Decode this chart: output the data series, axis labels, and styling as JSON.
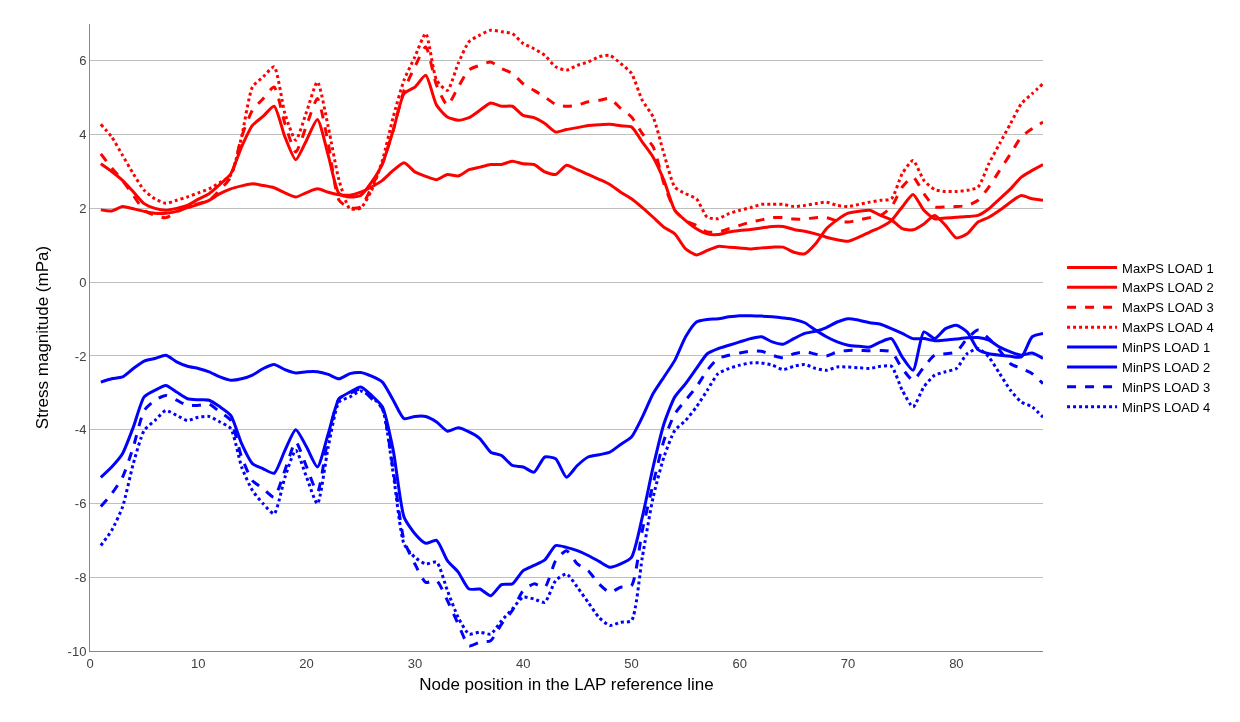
{
  "chart_data": {
    "type": "line",
    "xlabel": "Node position in the LAP reference line",
    "ylabel": "Stress magnitude (mPa)",
    "x": [
      1,
      2,
      3,
      4,
      5,
      6,
      7,
      8,
      9,
      10,
      11,
      12,
      13,
      14,
      15,
      16,
      17,
      18,
      19,
      20,
      21,
      22,
      23,
      24,
      25,
      26,
      27,
      28,
      29,
      30,
      31,
      32,
      33,
      34,
      35,
      36,
      37,
      38,
      39,
      40,
      41,
      42,
      43,
      44,
      45,
      46,
      47,
      48,
      49,
      50,
      51,
      52,
      53,
      54,
      55,
      56,
      57,
      58,
      59,
      60,
      61,
      62,
      63,
      64,
      65,
      66,
      67,
      68,
      69,
      70,
      71,
      72,
      73,
      74,
      75,
      76,
      77,
      78,
      79,
      80,
      81,
      82,
      83,
      84,
      85,
      86,
      87,
      88
    ],
    "xlim": [
      0,
      88
    ],
    "xticks": [
      0,
      10,
      20,
      30,
      40,
      50,
      60,
      70,
      80
    ],
    "ylim": [
      -10,
      7
    ],
    "yticks": [
      -10,
      -8,
      -6,
      -4,
      -2,
      0,
      2,
      4,
      6
    ],
    "grid": "y",
    "legend": "right",
    "marker": "none",
    "series": [
      {
        "name": "MaxPS LOAD 1",
        "color": "#ff0000",
        "line_style": "solid",
        "values": [
          1.96,
          1.93,
          2.05,
          1.99,
          1.92,
          1.87,
          1.87,
          1.92,
          2.02,
          2.11,
          2.22,
          2.4,
          2.53,
          2.61,
          2.67,
          2.62,
          2.56,
          2.42,
          2.31,
          2.43,
          2.53,
          2.44,
          2.37,
          2.36,
          2.44,
          2.58,
          2.76,
          3.03,
          3.24,
          2.99,
          2.87,
          2.78,
          2.92,
          2.88,
          3.05,
          3.12,
          3.19,
          3.19,
          3.28,
          3.21,
          3.19,
          2.99,
          2.92,
          3.17,
          3.05,
          2.92,
          2.79,
          2.65,
          2.44,
          2.26,
          2.02,
          1.76,
          1.49,
          1.31,
          0.9,
          0.74,
          0.86,
          0.97,
          0.95,
          0.93,
          0.9,
          0.93,
          0.95,
          0.95,
          0.81,
          0.77,
          1.04,
          1.45,
          1.69,
          1.87,
          1.92,
          1.95,
          1.81,
          1.69,
          1.45,
          1.42,
          1.58,
          1.81,
          1.54,
          1.2,
          1.31,
          1.63,
          1.76,
          1.95,
          2.17,
          2.35,
          2.26,
          2.22
        ]
      },
      {
        "name": "MaxPS LOAD 2",
        "color": "#ff0000",
        "line_style": "solid",
        "values": [
          3.21,
          3.0,
          2.76,
          2.45,
          2.13,
          2.0,
          1.95,
          2.0,
          2.08,
          2.25,
          2.4,
          2.65,
          2.94,
          3.67,
          4.25,
          4.5,
          4.77,
          3.94,
          3.32,
          3.85,
          4.41,
          3.44,
          2.4,
          2.31,
          2.35,
          2.71,
          3.21,
          4.12,
          5.11,
          5.29,
          5.61,
          4.8,
          4.48,
          4.39,
          4.46,
          4.66,
          4.86,
          4.77,
          4.77,
          4.52,
          4.46,
          4.3,
          4.07,
          4.14,
          4.19,
          4.25,
          4.27,
          4.28,
          4.24,
          4.21,
          3.8,
          3.39,
          2.76,
          1.95,
          1.67,
          1.45,
          1.31,
          1.29,
          1.36,
          1.4,
          1.43,
          1.47,
          1.51,
          1.51,
          1.43,
          1.38,
          1.31,
          1.22,
          1.15,
          1.11,
          1.22,
          1.36,
          1.49,
          1.67,
          2.04,
          2.38,
          1.95,
          1.72,
          1.74,
          1.76,
          1.78,
          1.81,
          1.99,
          2.26,
          2.53,
          2.85,
          3.03,
          3.19
        ]
      },
      {
        "name": "MaxPS LOAD 3",
        "color": "#ff0000",
        "line_style": "dashed",
        "values": [
          3.48,
          3.1,
          2.76,
          2.35,
          1.95,
          1.81,
          1.75,
          1.9,
          2.04,
          2.13,
          2.22,
          2.5,
          2.85,
          3.94,
          4.66,
          4.98,
          5.29,
          4.3,
          3.53,
          4.25,
          4.98,
          3.76,
          2.22,
          2.01,
          2.04,
          2.58,
          3.21,
          4.12,
          5.2,
          5.84,
          6.38,
          5.34,
          4.8,
          5.29,
          5.76,
          5.88,
          5.97,
          5.79,
          5.66,
          5.38,
          5.2,
          5.02,
          4.82,
          4.77,
          4.8,
          4.89,
          4.93,
          4.98,
          4.71,
          4.48,
          4.03,
          3.67,
          2.67,
          1.95,
          1.67,
          1.54,
          1.36,
          1.36,
          1.45,
          1.54,
          1.63,
          1.69,
          1.75,
          1.75,
          1.71,
          1.71,
          1.75,
          1.75,
          1.66,
          1.63,
          1.69,
          1.75,
          1.81,
          2.04,
          2.58,
          2.85,
          2.4,
          2.04,
          2.04,
          2.05,
          2.08,
          2.22,
          2.58,
          3.03,
          3.48,
          3.94,
          4.16,
          4.34
        ]
      },
      {
        "name": "MaxPS LOAD 4",
        "color": "#ff0000",
        "line_style": "dotted",
        "values": [
          4.28,
          3.94,
          3.44,
          2.94,
          2.49,
          2.26,
          2.14,
          2.22,
          2.31,
          2.42,
          2.53,
          2.7,
          2.9,
          3.94,
          5.29,
          5.57,
          5.84,
          4.57,
          3.85,
          4.62,
          5.43,
          4.21,
          2.76,
          1.99,
          2.01,
          2.49,
          3.3,
          4.48,
          5.48,
          6.11,
          6.74,
          5.48,
          5.2,
          5.93,
          6.52,
          6.7,
          6.83,
          6.79,
          6.74,
          6.47,
          6.33,
          6.15,
          5.84,
          5.75,
          5.88,
          5.97,
          6.11,
          6.15,
          5.93,
          5.66,
          4.93,
          4.48,
          3.48,
          2.58,
          2.4,
          2.26,
          1.76,
          1.72,
          1.86,
          1.95,
          2.02,
          2.11,
          2.11,
          2.11,
          2.05,
          2.08,
          2.13,
          2.17,
          2.08,
          2.05,
          2.11,
          2.17,
          2.22,
          2.26,
          2.94,
          3.3,
          2.76,
          2.51,
          2.46,
          2.46,
          2.49,
          2.58,
          3.21,
          3.76,
          4.3,
          4.84,
          5.11,
          5.38
        ]
      },
      {
        "name": "MinPS LOAD 1",
        "color": "#0000ff",
        "line_style": "solid",
        "values": [
          -2.71,
          -2.62,
          -2.57,
          -2.34,
          -2.14,
          -2.07,
          -1.98,
          -2.16,
          -2.28,
          -2.34,
          -2.43,
          -2.57,
          -2.66,
          -2.62,
          -2.52,
          -2.34,
          -2.23,
          -2.37,
          -2.46,
          -2.43,
          -2.43,
          -2.5,
          -2.62,
          -2.48,
          -2.45,
          -2.55,
          -2.71,
          -3.2,
          -3.7,
          -3.64,
          -3.64,
          -3.79,
          -4.04,
          -3.95,
          -4.06,
          -4.24,
          -4.61,
          -4.7,
          -4.97,
          -5.01,
          -5.15,
          -4.74,
          -4.79,
          -5.29,
          -4.97,
          -4.74,
          -4.68,
          -4.61,
          -4.4,
          -4.2,
          -3.66,
          -3.02,
          -2.57,
          -2.12,
          -1.48,
          -1.08,
          -1.01,
          -0.99,
          -0.94,
          -0.91,
          -0.91,
          -0.92,
          -0.94,
          -0.97,
          -1.01,
          -1.1,
          -1.3,
          -1.48,
          -1.62,
          -1.71,
          -1.74,
          -1.76,
          -1.62,
          -1.53,
          -2.03,
          -2.39,
          -1.35,
          -1.53,
          -1.26,
          -1.17,
          -1.35,
          -1.83,
          -1.94,
          -1.98,
          -2.01,
          -2.03,
          -1.48,
          -1.39
        ]
      },
      {
        "name": "MinPS LOAD 2",
        "color": "#0000ff",
        "line_style": "solid",
        "values": [
          -5.29,
          -5.01,
          -4.65,
          -3.93,
          -3.11,
          -2.93,
          -2.8,
          -2.98,
          -3.16,
          -3.19,
          -3.2,
          -3.38,
          -3.61,
          -4.38,
          -4.92,
          -5.06,
          -5.18,
          -4.56,
          -4.0,
          -4.47,
          -5.01,
          -4.11,
          -3.16,
          -2.98,
          -2.84,
          -3.07,
          -3.38,
          -4.56,
          -6.37,
          -6.82,
          -7.08,
          -7.0,
          -7.55,
          -7.86,
          -8.32,
          -8.32,
          -8.5,
          -8.2,
          -8.18,
          -7.82,
          -7.68,
          -7.53,
          -7.14,
          -7.19,
          -7.28,
          -7.41,
          -7.57,
          -7.73,
          -7.64,
          -7.46,
          -6.37,
          -5.01,
          -3.84,
          -3.11,
          -2.75,
          -2.34,
          -1.94,
          -1.8,
          -1.71,
          -1.62,
          -1.53,
          -1.48,
          -1.62,
          -1.68,
          -1.53,
          -1.39,
          -1.33,
          -1.23,
          -1.08,
          -0.99,
          -1.03,
          -1.1,
          -1.14,
          -1.26,
          -1.39,
          -1.53,
          -1.53,
          -1.59,
          -1.57,
          -1.54,
          -1.51,
          -1.5,
          -1.57,
          -1.76,
          -1.89,
          -1.98,
          -1.92,
          -2.07
        ]
      },
      {
        "name": "MinPS LOAD 3",
        "color": "#0000ff",
        "line_style": "dashed",
        "values": [
          -6.08,
          -5.74,
          -5.29,
          -4.47,
          -3.48,
          -3.2,
          -3.07,
          -3.2,
          -3.34,
          -3.34,
          -3.31,
          -3.52,
          -3.75,
          -4.74,
          -5.38,
          -5.6,
          -5.83,
          -5.1,
          -4.33,
          -5.01,
          -5.69,
          -4.2,
          -3.16,
          -3.02,
          -2.89,
          -3.16,
          -3.43,
          -5.1,
          -7.0,
          -7.64,
          -8.14,
          -8.09,
          -8.63,
          -9.27,
          -9.86,
          -9.76,
          -9.72,
          -9.27,
          -8.9,
          -8.36,
          -8.18,
          -8.27,
          -7.55,
          -7.28,
          -7.64,
          -7.82,
          -8.18,
          -8.41,
          -8.27,
          -8.23,
          -6.73,
          -5.47,
          -4.29,
          -3.57,
          -3.2,
          -2.84,
          -2.39,
          -2.07,
          -1.98,
          -1.92,
          -1.87,
          -1.87,
          -1.98,
          -2.05,
          -1.94,
          -1.89,
          -1.95,
          -2.0,
          -1.89,
          -1.85,
          -1.85,
          -1.86,
          -1.85,
          -1.89,
          -2.34,
          -2.66,
          -2.3,
          -1.98,
          -1.94,
          -1.89,
          -1.53,
          -1.3,
          -1.53,
          -1.85,
          -2.21,
          -2.34,
          -2.48,
          -2.75
        ]
      },
      {
        "name": "MinPS LOAD 4",
        "color": "#0000ff",
        "line_style": "dotted",
        "values": [
          -7.14,
          -6.73,
          -6.1,
          -4.92,
          -4.02,
          -3.75,
          -3.48,
          -3.61,
          -3.75,
          -3.66,
          -3.64,
          -3.79,
          -3.97,
          -5.01,
          -5.65,
          -6.01,
          -6.28,
          -5.29,
          -4.56,
          -5.29,
          -6.01,
          -4.47,
          -3.25,
          -3.11,
          -2.95,
          -3.11,
          -3.43,
          -5.19,
          -7.1,
          -7.46,
          -7.64,
          -7.59,
          -8.36,
          -9.09,
          -9.54,
          -9.49,
          -9.54,
          -9.18,
          -8.86,
          -8.54,
          -8.59,
          -8.68,
          -8.09,
          -7.91,
          -8.27,
          -8.68,
          -9.09,
          -9.31,
          -9.22,
          -9.18,
          -7.46,
          -5.83,
          -4.74,
          -4.02,
          -3.75,
          -3.38,
          -2.93,
          -2.48,
          -2.34,
          -2.25,
          -2.19,
          -2.19,
          -2.25,
          -2.37,
          -2.28,
          -2.23,
          -2.34,
          -2.39,
          -2.3,
          -2.3,
          -2.32,
          -2.34,
          -2.28,
          -2.28,
          -2.93,
          -3.38,
          -2.84,
          -2.52,
          -2.43,
          -2.34,
          -1.94,
          -1.8,
          -2.03,
          -2.48,
          -2.93,
          -3.25,
          -3.38,
          -3.66
        ]
      }
    ]
  }
}
